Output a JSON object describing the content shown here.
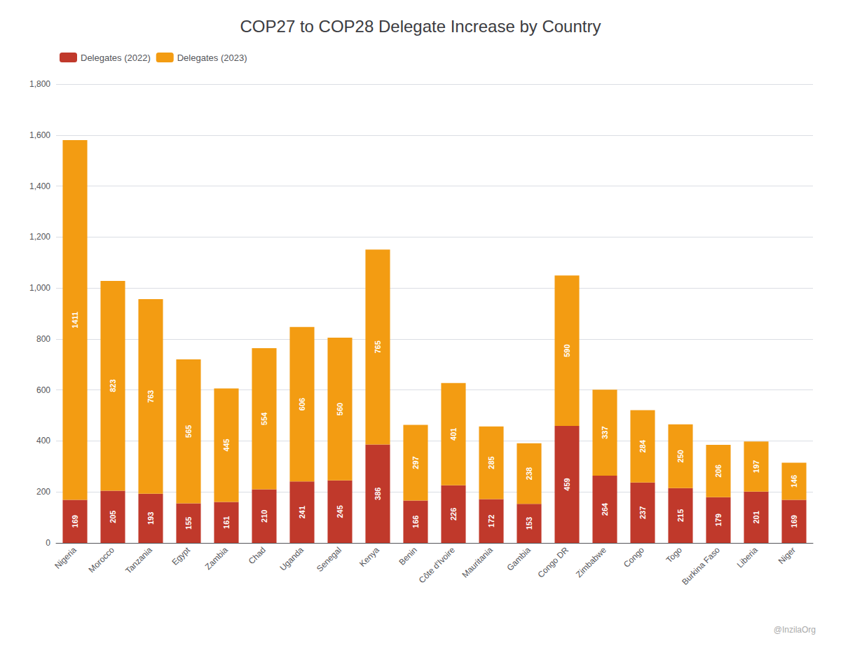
{
  "chart_data": {
    "type": "bar",
    "title": "COP27 to COP28 Delegate Increase by Country",
    "categories": [
      "Nigeria",
      "Morocco",
      "Tanzania",
      "Egypt",
      "Zambia",
      "Chad",
      "Uganda",
      "Senegal",
      "Kenya",
      "Benin",
      "Côte d'Ivoire",
      "Mauritania",
      "Gambia",
      "Congo DR",
      "Zimbabwe",
      "Congo",
      "Togo",
      "Burkina Faso",
      "Liberia",
      "Niger"
    ],
    "series": [
      {
        "name": "Delegates (2022)",
        "color": "#c0392b",
        "values": [
          169,
          205,
          193,
          155,
          161,
          210,
          241,
          245,
          386,
          166,
          226,
          172,
          153,
          459,
          264,
          237,
          215,
          179,
          201,
          169
        ]
      },
      {
        "name": "Delegates (2023)",
        "color": "#f39c12",
        "values": [
          1411,
          823,
          763,
          565,
          445,
          554,
          606,
          560,
          765,
          297,
          401,
          285,
          238,
          590,
          337,
          284,
          250,
          206,
          197,
          146
        ]
      }
    ],
    "stacked": true,
    "data_labels": true,
    "ylim": [
      0,
      1800
    ],
    "yticks": [
      0,
      200,
      400,
      600,
      800,
      {
        "value": 1000,
        "label": "1,000"
      },
      {
        "value": 1200,
        "label": "1,200"
      },
      {
        "value": 1400,
        "label": "1,400"
      },
      {
        "value": 1600,
        "label": "1,600"
      },
      {
        "value": 1800,
        "label": "1,800"
      }
    ],
    "grid": true,
    "legend": "upper left",
    "annotations": [
      "@InzilaOrg"
    ]
  }
}
